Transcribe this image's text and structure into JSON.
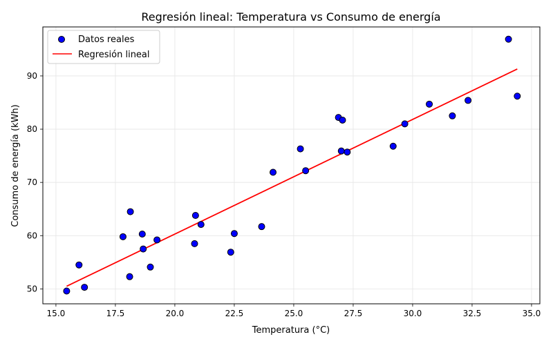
{
  "chart_data": {
    "type": "scatter",
    "title": "Regresión lineal: Temperatura vs Consumo de energía",
    "xlabel": "Temperatura (°C)",
    "ylabel": "Consumo de energía (kWh)",
    "xlim": [
      14.45,
      35.35
    ],
    "ylim": [
      47.2,
      99.2
    ],
    "xticks": [
      15.0,
      17.5,
      20.0,
      22.5,
      25.0,
      27.5,
      30.0,
      32.5,
      35.0
    ],
    "xtick_labels": [
      "15.0",
      "17.5",
      "20.0",
      "22.5",
      "25.0",
      "27.5",
      "30.0",
      "32.5",
      "35.0"
    ],
    "yticks": [
      50,
      60,
      70,
      80,
      90
    ],
    "ytick_labels": [
      "50",
      "60",
      "70",
      "80",
      "90"
    ],
    "grid": true,
    "legend_position": "upper-left",
    "series": [
      {
        "name": "Datos reales",
        "kind": "scatter",
        "color": "#0000ff",
        "edgecolor": "#000000",
        "points": [
          [
            15.45,
            49.6
          ],
          [
            15.97,
            54.5
          ],
          [
            16.2,
            50.3
          ],
          [
            17.82,
            59.8
          ],
          [
            18.1,
            52.3
          ],
          [
            18.13,
            64.5
          ],
          [
            18.63,
            60.3
          ],
          [
            18.67,
            57.5
          ],
          [
            18.97,
            54.1
          ],
          [
            19.25,
            59.2
          ],
          [
            20.83,
            58.5
          ],
          [
            20.87,
            63.8
          ],
          [
            21.1,
            62.1
          ],
          [
            22.35,
            56.9
          ],
          [
            22.5,
            60.4
          ],
          [
            23.65,
            61.7
          ],
          [
            24.13,
            71.9
          ],
          [
            25.28,
            76.3
          ],
          [
            25.5,
            72.2
          ],
          [
            26.88,
            82.2
          ],
          [
            27.0,
            75.9
          ],
          [
            27.05,
            81.7
          ],
          [
            27.25,
            75.7
          ],
          [
            29.18,
            76.8
          ],
          [
            29.67,
            81.0
          ],
          [
            30.7,
            84.7
          ],
          [
            31.67,
            82.5
          ],
          [
            32.33,
            85.4
          ],
          [
            34.03,
            96.9
          ],
          [
            34.4,
            86.2
          ]
        ]
      },
      {
        "name": "Regresión lineal",
        "kind": "line",
        "color": "#ff0000",
        "points": [
          [
            15.45,
            50.5
          ],
          [
            34.4,
            91.3
          ]
        ]
      }
    ]
  }
}
